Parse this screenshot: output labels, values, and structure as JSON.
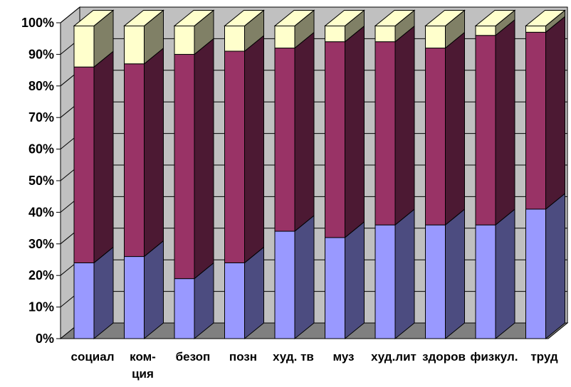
{
  "chart_data": {
    "type": "bar",
    "stacked": "percent",
    "three_d": true,
    "title": "",
    "xlabel": "",
    "ylabel": "",
    "ylim": [
      0,
      100
    ],
    "y_ticks": [
      "0%",
      "10%",
      "20%",
      "30%",
      "40%",
      "50%",
      "60%",
      "70%",
      "80%",
      "90%",
      "100%"
    ],
    "grid": true,
    "legend": "none",
    "categories": [
      [
        "социал"
      ],
      [
        "ком-",
        "ция"
      ],
      [
        "безоп"
      ],
      [
        "позн"
      ],
      [
        "худ. тв"
      ],
      [
        "муз"
      ],
      [
        "худ.лит"
      ],
      [
        "здоров"
      ],
      [
        "физкул."
      ],
      [
        "труд"
      ]
    ],
    "series": [
      {
        "color": "#9999ff",
        "side_color": "#4c4c80",
        "values": [
          24,
          26,
          19,
          24,
          34,
          32,
          36,
          36,
          36,
          41
        ]
      },
      {
        "color": "#993366",
        "side_color": "#4c1933",
        "values": [
          62,
          61,
          71,
          67,
          58,
          62,
          58,
          56,
          60,
          56
        ]
      },
      {
        "color": "#ffffcc",
        "side_color": "#808066",
        "values": [
          13,
          12,
          9,
          8,
          7,
          5,
          5,
          7,
          3,
          2
        ]
      }
    ],
    "colors": {
      "wall": "#c0c0c0",
      "floor": "#808080",
      "grid": "#000000",
      "outline": "#000000"
    }
  }
}
